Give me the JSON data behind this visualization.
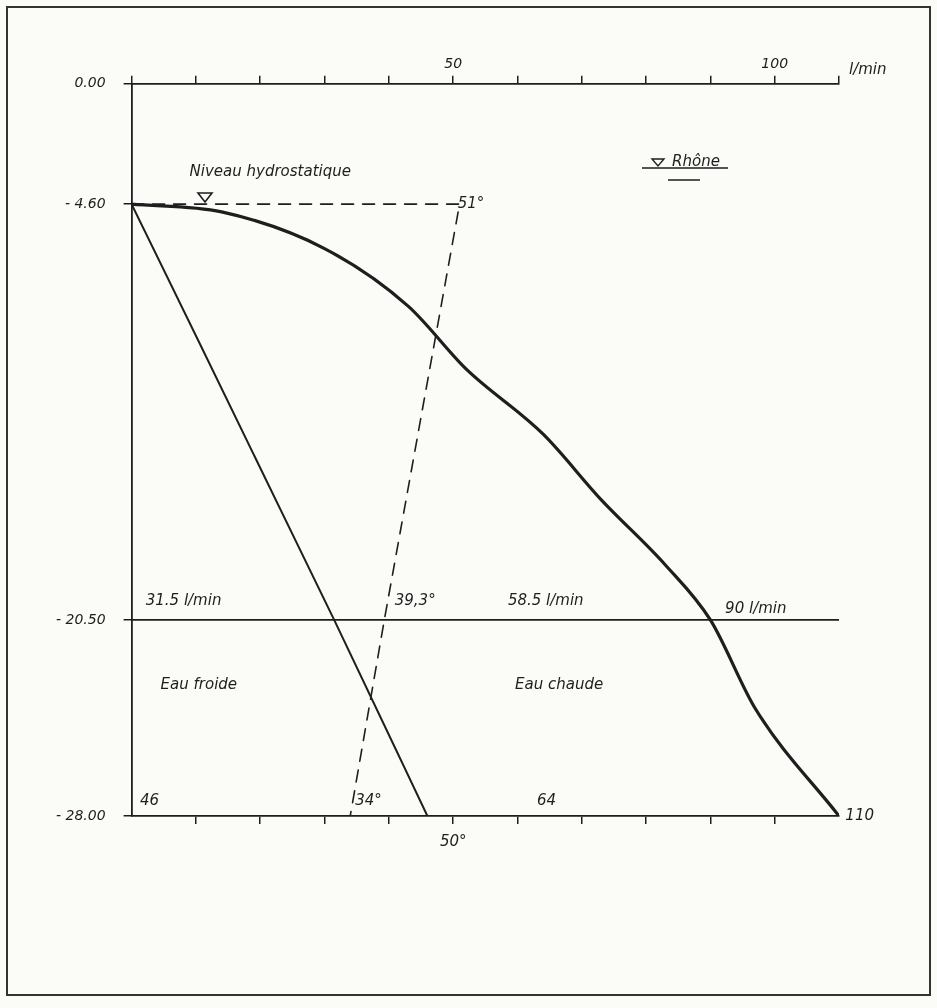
{
  "chart_data": {
    "type": "line",
    "xlabel": "l/min",
    "xlim": [
      0,
      110
    ],
    "xticks": [
      {
        "value": 0,
        "label": null
      },
      {
        "value": 10,
        "label": null
      },
      {
        "value": 20,
        "label": null
      },
      {
        "value": 30,
        "label": null
      },
      {
        "value": 40,
        "label": null
      },
      50,
      {
        "value": 60,
        "label": null
      },
      {
        "value": 70,
        "label": null
      },
      {
        "value": 80,
        "label": null
      },
      {
        "value": 90,
        "label": null
      },
      100,
      {
        "value": 110,
        "label": null
      }
    ],
    "ylim": [
      -28,
      0
    ],
    "yticks": [
      {
        "value": 0,
        "label": "0.00"
      },
      {
        "value": -4.6,
        "label": "- 4.60"
      },
      {
        "value": -20.5,
        "label": "- 20.50"
      },
      {
        "value": -28,
        "label": "- 28.00"
      }
    ],
    "series": [
      {
        "color": "#1e1e1e",
        "line_style": "solid",
        "x": [
          0,
          14,
          30,
          43,
          52,
          64,
          73,
          83,
          90,
          97,
          110
        ],
        "values": [
          -4.6,
          -4.9,
          -6.3,
          -8.5,
          -10.9,
          -13.4,
          -15.9,
          -18.4,
          -20.5,
          -23.9,
          -28
        ]
      },
      {
        "color": "#1e1e1e",
        "line_style": "solid",
        "x": [
          0,
          31.5,
          46
        ],
        "values": [
          -4.6,
          -20.5,
          -28
        ]
      },
      {
        "color": "#1e1e1e",
        "line_style": "dashed",
        "x": [
          0,
          51,
          39.3,
          34
        ],
        "values": [
          -4.6,
          -4.6,
          -20.5,
          -28
        ]
      }
    ],
    "ref_lines": [
      {
        "axis": "y",
        "value": -20.5
      }
    ],
    "annotations": [
      "Niveau hydrostatique",
      "51°",
      "Rhône",
      "31.5 l/min",
      "39,3°",
      "58.5 l/min",
      "90 l/min",
      "Eau froide",
      "Eau chaude",
      "46",
      "34°",
      "64",
      "110",
      "50°"
    ],
    "marker": "none",
    "grid": false,
    "legend": false
  }
}
